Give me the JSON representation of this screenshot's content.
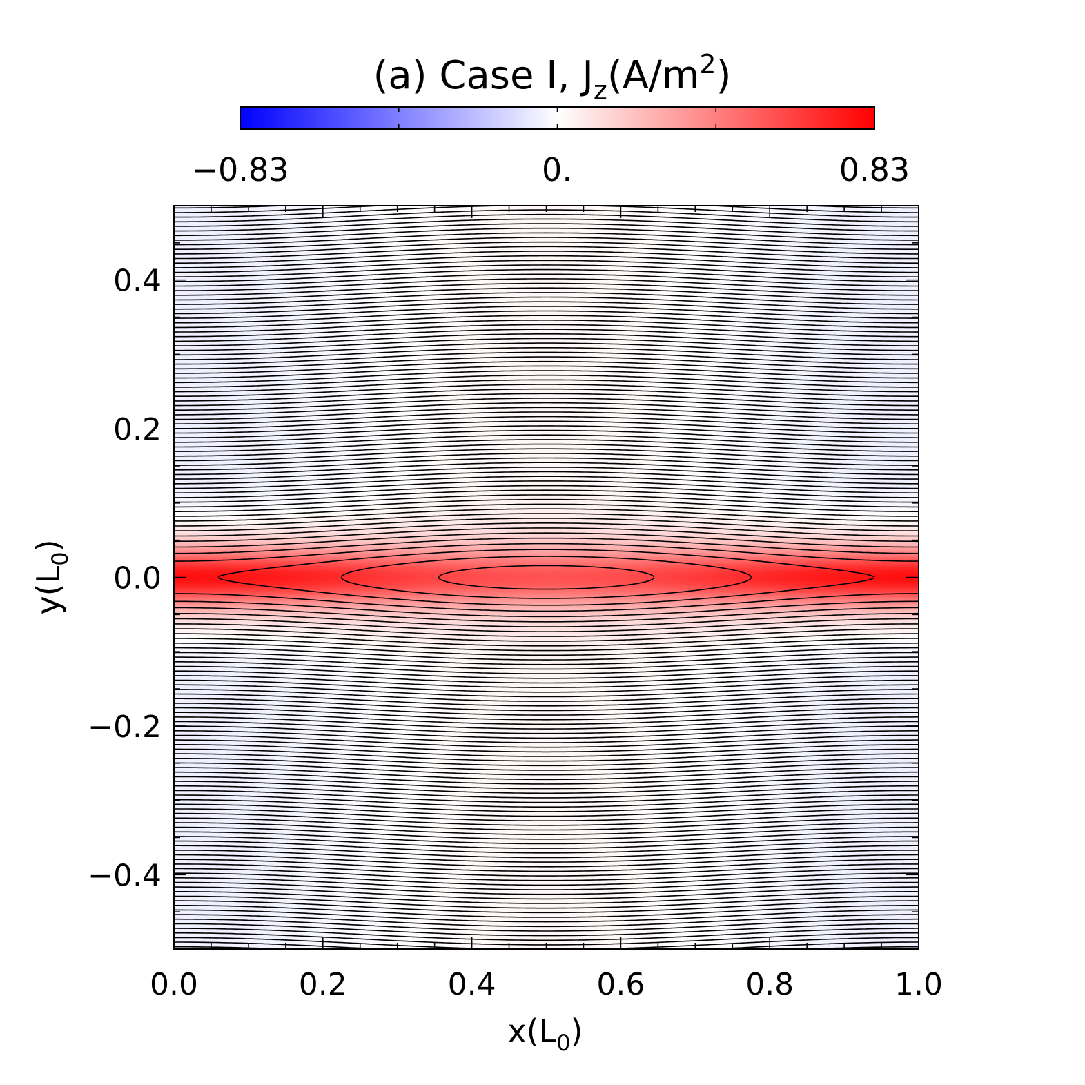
{
  "chart_data": {
    "type": "heatmap",
    "title": {
      "prefix": "(a) Case I, J",
      "subscript": "z",
      "unit_open": "(A/m",
      "superscript": "2",
      "unit_close": ")"
    },
    "colorbar": {
      "min": -0.83,
      "max": 0.83,
      "colors": [
        "#0000ff",
        "#ffffff",
        "#ff0000"
      ],
      "tick_labels": [
        "−0.83",
        "0.",
        "0.83"
      ]
    },
    "xlabel": {
      "main": "x(L",
      "sub": "0",
      "close": ")"
    },
    "ylabel": {
      "main": "y(L",
      "sub": "0",
      "close": ")"
    },
    "xlim": [
      0.0,
      1.0
    ],
    "ylim": [
      -0.5,
      0.5
    ],
    "xticks": [
      {
        "value": 0.0,
        "label": "0.0"
      },
      {
        "value": 0.2,
        "label": "0.2"
      },
      {
        "value": 0.4,
        "label": "0.4"
      },
      {
        "value": 0.6,
        "label": "0.6"
      },
      {
        "value": 0.8,
        "label": "0.8"
      },
      {
        "value": 1.0,
        "label": "1.0"
      }
    ],
    "yticks": [
      {
        "value": -0.4,
        "label": "−0.4"
      },
      {
        "value": -0.2,
        "label": "−0.2"
      },
      {
        "value": 0.0,
        "label": "0.0"
      },
      {
        "value": 0.2,
        "label": "0.2"
      },
      {
        "value": 0.4,
        "label": "0.4"
      }
    ],
    "field": {
      "description_values": {
        "peak_jz": 0.83,
        "current_sheet_half_width": 0.04,
        "x_points": [
          0.5
        ],
        "o_points": [
          0.0,
          1.0
        ]
      }
    },
    "contour_count": 79
  }
}
